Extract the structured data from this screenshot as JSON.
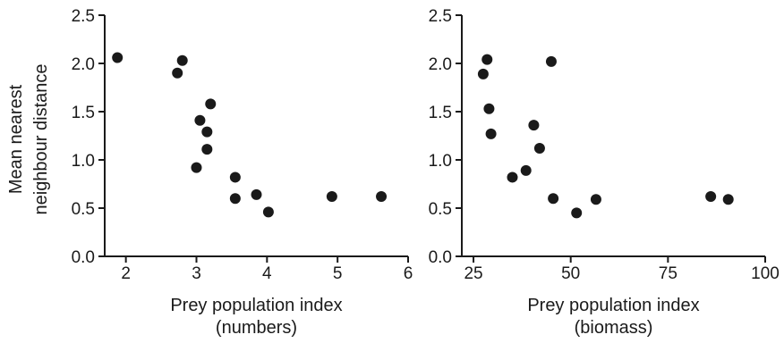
{
  "chart_data": [
    {
      "type": "scatter",
      "title": "",
      "ylabel": [
        "Mean nearest",
        "neighbour distance"
      ],
      "xlabel": [
        "Prey population index",
        "(numbers)"
      ],
      "xlim": [
        1.7,
        6
      ],
      "ylim": [
        0,
        2.5
      ],
      "xticks": [
        "2",
        "3",
        "4",
        "5",
        "6"
      ],
      "xtick_values": [
        2,
        3,
        4,
        5,
        6
      ],
      "yticks": [
        "0.0",
        "0.5",
        "1.0",
        "1.5",
        "2.0",
        "2.5"
      ],
      "ytick_values": [
        0,
        0.5,
        1.0,
        1.5,
        2.0,
        2.5
      ],
      "grid": false,
      "marker_color": "#1a1a1a",
      "points": [
        {
          "x": 1.88,
          "y": 2.06
        },
        {
          "x": 2.73,
          "y": 1.9
        },
        {
          "x": 2.8,
          "y": 2.03
        },
        {
          "x": 3.2,
          "y": 1.58
        },
        {
          "x": 3.05,
          "y": 1.41
        },
        {
          "x": 3.15,
          "y": 1.29
        },
        {
          "x": 3.15,
          "y": 1.11
        },
        {
          "x": 3.0,
          "y": 0.92
        },
        {
          "x": 3.55,
          "y": 0.82
        },
        {
          "x": 3.55,
          "y": 0.6
        },
        {
          "x": 3.85,
          "y": 0.64
        },
        {
          "x": 4.02,
          "y": 0.46
        },
        {
          "x": 4.92,
          "y": 0.62
        },
        {
          "x": 5.62,
          "y": 0.62
        }
      ]
    },
    {
      "type": "scatter",
      "title": "",
      "ylabel": [],
      "xlabel": [
        "Prey population index",
        "(biomass)"
      ],
      "xlim": [
        22,
        100
      ],
      "ylim": [
        0,
        2.5
      ],
      "xticks": [
        "25",
        "50",
        "75",
        "100"
      ],
      "xtick_values": [
        25,
        50,
        75,
        100
      ],
      "yticks": [
        "0.0",
        "0.5",
        "1.0",
        "1.5",
        "2.0",
        "2.5"
      ],
      "ytick_values": [
        0,
        0.5,
        1.0,
        1.5,
        2.0,
        2.5
      ],
      "grid": false,
      "marker_color": "#1a1a1a",
      "points": [
        {
          "x": 27.5,
          "y": 1.89
        },
        {
          "x": 28.5,
          "y": 2.04
        },
        {
          "x": 29.0,
          "y": 1.53
        },
        {
          "x": 29.5,
          "y": 1.27
        },
        {
          "x": 35.0,
          "y": 0.82
        },
        {
          "x": 38.5,
          "y": 0.89
        },
        {
          "x": 40.5,
          "y": 1.36
        },
        {
          "x": 42.0,
          "y": 1.12
        },
        {
          "x": 45.0,
          "y": 2.02
        },
        {
          "x": 45.5,
          "y": 0.6
        },
        {
          "x": 51.5,
          "y": 0.45
        },
        {
          "x": 56.5,
          "y": 0.59
        },
        {
          "x": 86.0,
          "y": 0.62
        },
        {
          "x": 90.5,
          "y": 0.59
        }
      ]
    }
  ]
}
